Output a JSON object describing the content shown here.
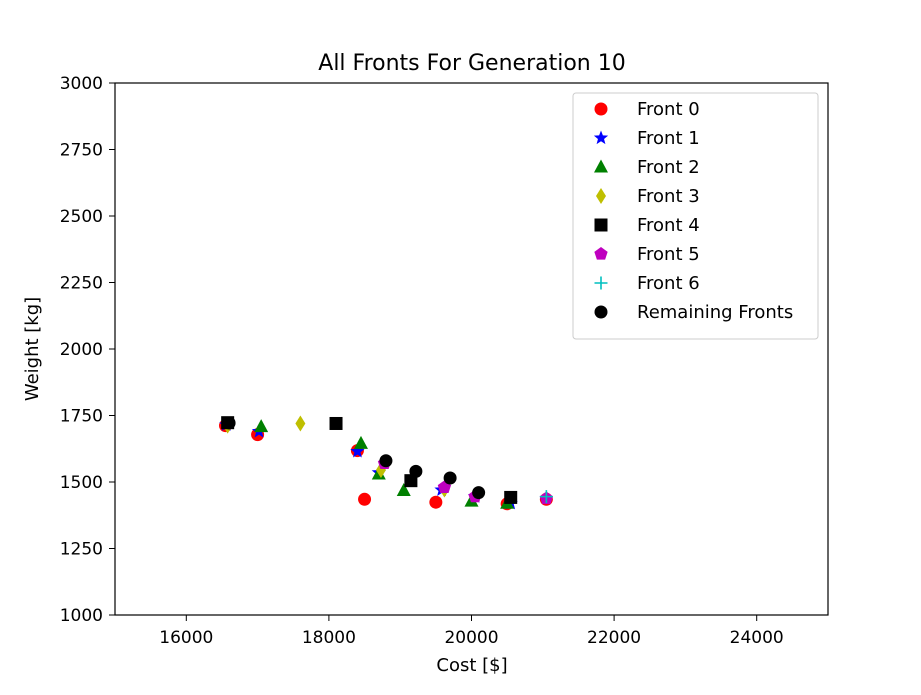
{
  "chart_data": {
    "type": "scatter",
    "title": "All Fronts For Generation 10",
    "xlabel": "Cost [$]",
    "ylabel": "Weight [kg]",
    "xlim": [
      15000,
      25000
    ],
    "ylim": [
      1000,
      3000
    ],
    "xticks": [
      "16000",
      "18000",
      "20000",
      "22000",
      "24000"
    ],
    "yticks": [
      "1000",
      "1250",
      "1500",
      "1750",
      "2000",
      "2250",
      "2500",
      "2750",
      "3000"
    ],
    "grid": false,
    "legend_position": "top-right",
    "series": [
      {
        "name": "Front 0",
        "marker": "circle",
        "color": "#ff0000",
        "points": [
          [
            16550,
            1712
          ],
          [
            17000,
            1678
          ],
          [
            18400,
            1618
          ],
          [
            18500,
            1435
          ],
          [
            19500,
            1424
          ],
          [
            20500,
            1418
          ],
          [
            21050,
            1435
          ]
        ]
      },
      {
        "name": "Front 1",
        "marker": "star",
        "color": "#0000ff",
        "points": [
          [
            16560,
            1715
          ],
          [
            17020,
            1690
          ],
          [
            18400,
            1615
          ],
          [
            18700,
            1535
          ],
          [
            19580,
            1470
          ],
          [
            20050,
            1445
          ],
          [
            20550,
            1420
          ]
        ]
      },
      {
        "name": "Front 2",
        "marker": "triangle",
        "color": "#008000",
        "points": [
          [
            17050,
            1708
          ],
          [
            18450,
            1645
          ],
          [
            18700,
            1530
          ],
          [
            19050,
            1468
          ],
          [
            20000,
            1428
          ],
          [
            20500,
            1420
          ]
        ]
      },
      {
        "name": "Front 3",
        "marker": "diamond",
        "color": "#bfbf00",
        "points": [
          [
            16580,
            1712
          ],
          [
            17600,
            1720
          ],
          [
            18730,
            1545
          ],
          [
            19620,
            1472
          ]
        ]
      },
      {
        "name": "Front 4",
        "marker": "square",
        "color": "#000000",
        "points": [
          [
            16580,
            1723
          ],
          [
            18100,
            1720
          ],
          [
            19150,
            1505
          ],
          [
            20550,
            1442
          ]
        ]
      },
      {
        "name": "Front 5",
        "marker": "pentagon",
        "color": "#bf00bf",
        "points": [
          [
            18780,
            1570
          ],
          [
            19620,
            1480
          ],
          [
            20050,
            1445
          ],
          [
            21050,
            1438
          ]
        ]
      },
      {
        "name": "Front 6",
        "marker": "plus",
        "color": "#00bfbf",
        "points": [
          [
            21050,
            1445
          ]
        ]
      },
      {
        "name": "Remaining Fronts",
        "marker": "circle",
        "color": "#000000",
        "points": [
          [
            16600,
            1722
          ],
          [
            18800,
            1580
          ],
          [
            19220,
            1540
          ],
          [
            19700,
            1515
          ],
          [
            20100,
            1460
          ]
        ]
      }
    ]
  }
}
